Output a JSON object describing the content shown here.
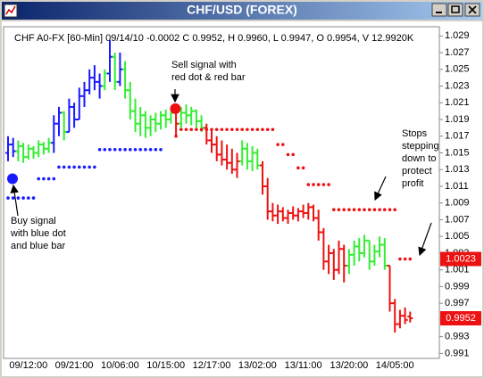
{
  "window_title": "CHF/USD (FOREX)",
  "chart_data": {
    "type": "ohlc",
    "header": "CHF A0-FX [60-Min] 09/14/10 -0.0002 C 0.9952, H 0.9960, L 0.9947, O 0.9954, V 12.9920K",
    "categories": [
      null,
      null,
      null,
      null,
      "09/12:00",
      null,
      null,
      null,
      null,
      null,
      null,
      null,
      null,
      "09/21:00",
      null,
      null,
      null,
      null,
      null,
      null,
      null,
      null,
      "10/06:00",
      null,
      null,
      null,
      null,
      null,
      null,
      null,
      null,
      "10/15:00",
      null,
      null,
      null,
      null,
      null,
      null,
      null,
      null,
      "12/17:00",
      null,
      null,
      null,
      null,
      null,
      null,
      null,
      null,
      "13/02:00",
      null,
      null,
      null,
      null,
      null,
      null,
      null,
      null,
      "13/11:00",
      null,
      null,
      null,
      null,
      null,
      null,
      null,
      null,
      "13/20:00",
      null,
      null,
      null,
      null,
      null,
      null,
      null,
      null,
      "14/05:00",
      null,
      null,
      null
    ],
    "open": [
      1.015,
      1.016,
      1.0152,
      1.0158,
      1.0145,
      1.0155,
      1.015,
      1.016,
      1.0155,
      1.0162,
      1.0185,
      1.0198,
      1.0175,
      1.0205,
      1.019,
      1.0218,
      1.0225,
      1.024,
      1.0235,
      1.023,
      1.0245,
      1.0265,
      1.0235,
      1.025,
      1.0225,
      1.02,
      1.0185,
      1.0195,
      1.018,
      1.019,
      1.0185,
      1.0195,
      1.019,
      1.02,
      1.0185,
      1.0198,
      1.0195,
      1.02,
      1.0188,
      1.018,
      1.0165,
      1.016,
      1.0148,
      1.0142,
      1.0138,
      1.013,
      1.014,
      1.0155,
      1.014,
      1.015,
      1.0135,
      1.011,
      1.008,
      1.0075,
      1.008,
      1.0072,
      1.0078,
      1.0075,
      1.008,
      1.0078,
      1.0085,
      1.0072,
      1.0055,
      1.002,
      1.003,
      1.001,
      1.0035,
      1.0015,
      1.0028,
      1.0038,
      1.003,
      1.0045,
      1.002,
      1.0032,
      1.004,
      1.0015,
      0.997,
      0.9945,
      0.9955,
      0.9954
    ],
    "high": [
      1.017,
      1.0168,
      1.0165,
      1.0162,
      1.016,
      1.0158,
      1.0165,
      1.0163,
      1.0168,
      1.0195,
      1.0205,
      1.02,
      1.0215,
      1.021,
      1.0228,
      1.0235,
      1.025,
      1.0255,
      1.0245,
      1.025,
      1.0285,
      1.027,
      1.027,
      1.026,
      1.0235,
      1.0215,
      1.0205,
      1.02,
      1.0195,
      1.0198,
      1.02,
      1.0202,
      1.02,
      1.0203,
      1.0205,
      1.0208,
      1.0205,
      1.0202,
      1.0195,
      1.0185,
      1.0178,
      1.017,
      1.0165,
      1.016,
      1.0155,
      1.015,
      1.0165,
      1.0162,
      1.0158,
      1.0155,
      1.014,
      1.012,
      1.009,
      1.0088,
      1.0085,
      1.0082,
      1.0086,
      1.0084,
      1.0088,
      1.009,
      1.0088,
      1.0082,
      1.006,
      1.004,
      1.0035,
      1.0045,
      1.004,
      1.0035,
      1.0045,
      1.0048,
      1.0052,
      1.0045,
      1.004,
      1.005,
      1.0048,
      1.0015,
      0.9975,
      0.9962,
      0.9965,
      0.996
    ],
    "low": [
      1.014,
      1.0145,
      1.014,
      1.0138,
      1.0142,
      1.0143,
      1.0145,
      1.0148,
      1.015,
      1.015,
      1.017,
      1.0165,
      1.0175,
      1.018,
      1.019,
      1.0205,
      1.022,
      1.0225,
      1.0215,
      1.0225,
      1.0235,
      1.0225,
      1.023,
      1.0215,
      1.019,
      1.0175,
      1.017,
      1.0168,
      1.017,
      1.0175,
      1.0178,
      1.018,
      1.0185,
      1.017,
      1.018,
      1.0185,
      1.0183,
      1.018,
      1.0175,
      1.016,
      1.015,
      1.014,
      1.0135,
      1.013,
      1.0125,
      1.012,
      1.0135,
      1.013,
      1.0128,
      1.013,
      1.01,
      1.007,
      1.0068,
      1.0065,
      1.0068,
      1.0065,
      1.007,
      1.0068,
      1.0072,
      1.007,
      1.0068,
      1.0045,
      1.001,
      1.0005,
      0.9998,
      1.0005,
      0.9995,
      1.0005,
      1.0015,
      1.002,
      1.0025,
      1.001,
      1.0015,
      1.0025,
      1.001,
      0.996,
      0.9935,
      0.994,
      0.9945,
      0.9947
    ],
    "close": [
      1.016,
      1.0152,
      1.0158,
      1.0145,
      1.0155,
      1.015,
      1.016,
      1.0155,
      1.0162,
      1.0185,
      1.0198,
      1.0175,
      1.0205,
      1.019,
      1.0218,
      1.0225,
      1.024,
      1.0235,
      1.023,
      1.0245,
      1.0265,
      1.0235,
      1.025,
      1.0225,
      1.02,
      1.0185,
      1.0195,
      1.018,
      1.019,
      1.0185,
      1.0195,
      1.019,
      1.0198,
      1.0185,
      1.0198,
      1.0195,
      1.02,
      1.0188,
      1.018,
      1.0165,
      1.016,
      1.0148,
      1.0142,
      1.0138,
      1.013,
      1.014,
      1.0155,
      1.014,
      1.015,
      1.0135,
      1.011,
      1.008,
      1.0075,
      1.008,
      1.0072,
      1.0078,
      1.0075,
      1.008,
      1.0078,
      1.0085,
      1.0072,
      1.0055,
      1.002,
      1.003,
      1.001,
      1.0035,
      1.0015,
      1.0028,
      1.0038,
      1.003,
      1.0045,
      1.002,
      1.0032,
      1.004,
      1.0015,
      0.997,
      0.9945,
      0.9955,
      0.995,
      0.9952
    ],
    "bar_colors": [
      "#1a1aff",
      "#1a1aff",
      "#33ee33",
      "#33ee33",
      "#33ee33",
      "#33ee33",
      "#33ee33",
      "#33ee33",
      "#33ee33",
      "#1a1aff",
      "#1a1aff",
      "#33ee33",
      "#1a1aff",
      "#1a1aff",
      "#1a1aff",
      "#1a1aff",
      "#1a1aff",
      "#1a1aff",
      "#1a1aff",
      "#33ee33",
      "#1a1aff",
      "#33ee33",
      "#1a1aff",
      "#33ee33",
      "#33ee33",
      "#33ee33",
      "#33ee33",
      "#33ee33",
      "#33ee33",
      "#33ee33",
      "#33ee33",
      "#33ee33",
      "#33ee33",
      "#ee1111",
      "#33ee33",
      "#33ee33",
      "#33ee33",
      "#33ee33",
      "#33ee33",
      "#ee1111",
      "#ee1111",
      "#ee1111",
      "#ee1111",
      "#ee1111",
      "#ee1111",
      "#ee1111",
      "#33ee33",
      "#33ee33",
      "#33ee33",
      "#33ee33",
      "#ee1111",
      "#ee1111",
      "#ee1111",
      "#ee1111",
      "#ee1111",
      "#ee1111",
      "#ee1111",
      "#ee1111",
      "#ee1111",
      "#ee1111",
      "#ee1111",
      "#ee1111",
      "#ee1111",
      "#ee1111",
      "#ee1111",
      "#ee1111",
      "#ee1111",
      "#33ee33",
      "#33ee33",
      "#33ee33",
      "#33ee33",
      "#33ee33",
      "#33ee33",
      "#33ee33",
      "#33ee33",
      "#ee1111",
      "#ee1111",
      "#ee1111",
      "#ee1111",
      "#ee1111"
    ],
    "stops": [
      {
        "color": "#1a1aff",
        "values": [
          1.0096,
          1.0096,
          1.0096,
          1.0096,
          1.0096,
          1.0096,
          1.0119,
          1.0119,
          1.0119,
          1.0119,
          1.0133,
          1.0133,
          1.0133,
          1.0133,
          1.0133,
          1.0133,
          1.0133,
          1.0133,
          1.0154,
          1.0154,
          1.0154,
          1.0154,
          1.0154,
          1.0154,
          1.0154,
          1.0154,
          1.0154,
          1.0154,
          1.0154,
          1.0154,
          1.0154,
          null,
          null,
          null,
          null,
          null,
          null,
          null,
          null,
          null,
          null,
          null,
          null,
          null,
          null,
          null,
          null,
          null,
          null,
          null,
          null,
          null,
          null,
          null,
          null,
          null,
          null,
          null,
          null,
          null,
          null,
          null,
          null,
          null,
          null,
          null,
          null,
          null,
          null,
          null,
          null,
          null,
          null,
          null,
          null,
          null,
          null,
          null,
          null,
          null
        ]
      },
      {
        "color": "#ee1111",
        "values": [
          null,
          null,
          null,
          null,
          null,
          null,
          null,
          null,
          null,
          null,
          null,
          null,
          null,
          null,
          null,
          null,
          null,
          null,
          null,
          null,
          null,
          null,
          null,
          null,
          null,
          null,
          null,
          null,
          null,
          null,
          null,
          null,
          null,
          1.017,
          1.0178,
          1.0178,
          1.0178,
          1.0178,
          1.0178,
          1.0178,
          1.0178,
          1.0178,
          1.0178,
          1.0178,
          1.0178,
          1.0178,
          1.0178,
          1.0178,
          1.0178,
          1.0178,
          1.0178,
          1.0178,
          1.0178,
          1.016,
          1.016,
          1.0148,
          1.0148,
          1.0132,
          1.0132,
          1.0112,
          1.0112,
          1.0112,
          1.0112,
          1.0112,
          1.0082,
          1.0082,
          1.0082,
          1.0082,
          1.0082,
          1.0082,
          1.0082,
          1.0082,
          1.0082,
          1.0082,
          1.0082,
          1.0082,
          1.0082,
          1.0023,
          1.0023,
          1.0023
        ]
      }
    ],
    "signals": [
      {
        "bar": 0,
        "value": 1.0119,
        "color": "#1a1aff"
      },
      {
        "bar": 32,
        "value": 1.0203,
        "color": "#ee1111"
      }
    ],
    "annotations": [
      {
        "lines": [
          "Sell signal with",
          "red dot & red bar"
        ]
      },
      {
        "lines": [
          "Buy signal",
          "with blue dot",
          "and blue bar"
        ]
      },
      {
        "lines": [
          "Stops",
          "stepping",
          "down to",
          "protect",
          "profit"
        ]
      }
    ],
    "ylim": [
      0.9904,
      1.0301
    ],
    "yticks": [
      0.991,
      0.993,
      0.995,
      0.997,
      0.999,
      1.001,
      1.003,
      1.005,
      1.007,
      1.009,
      1.011,
      1.013,
      1.015,
      1.017,
      1.019,
      1.021,
      1.023,
      1.025,
      1.027,
      1.029
    ]
  }
}
